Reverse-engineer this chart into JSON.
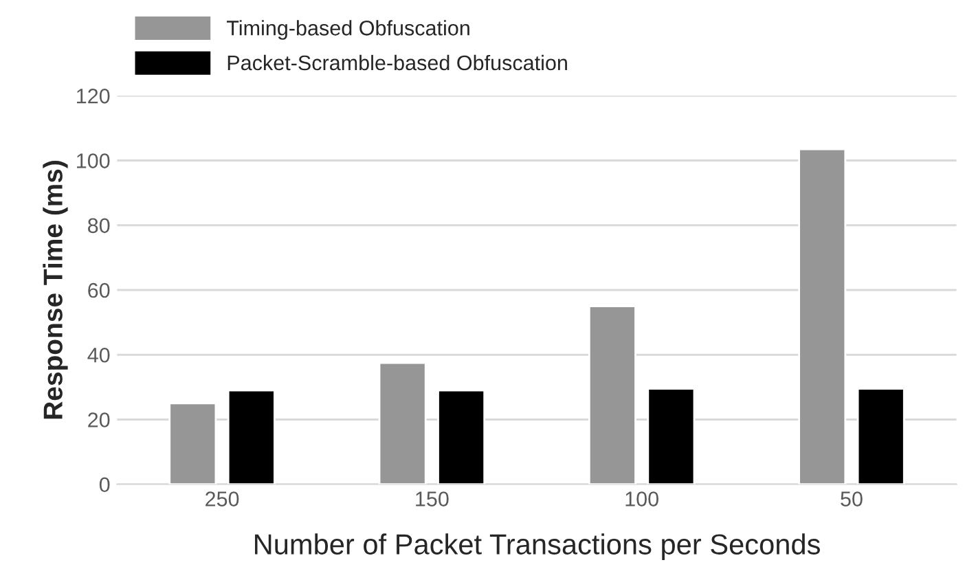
{
  "chart_data": {
    "type": "bar",
    "xlabel": "Number of Packet Transactions per Seconds",
    "ylabel": "Response Time (ms)",
    "categories": [
      "250",
      "150",
      "100",
      "50"
    ],
    "series": [
      {
        "name": "Timing-based Obfuscation",
        "color": "#969696",
        "values": [
          25,
          37.5,
          55,
          103.5
        ]
      },
      {
        "name": "Packet-Scramble-based Obfuscation",
        "color": "#000000",
        "values": [
          29,
          29,
          29.5,
          29.5
        ]
      }
    ],
    "ylim": [
      0,
      120
    ],
    "yticks": [
      0,
      20,
      40,
      60,
      80,
      100,
      120
    ],
    "grid": "y",
    "legend": "top left"
  }
}
